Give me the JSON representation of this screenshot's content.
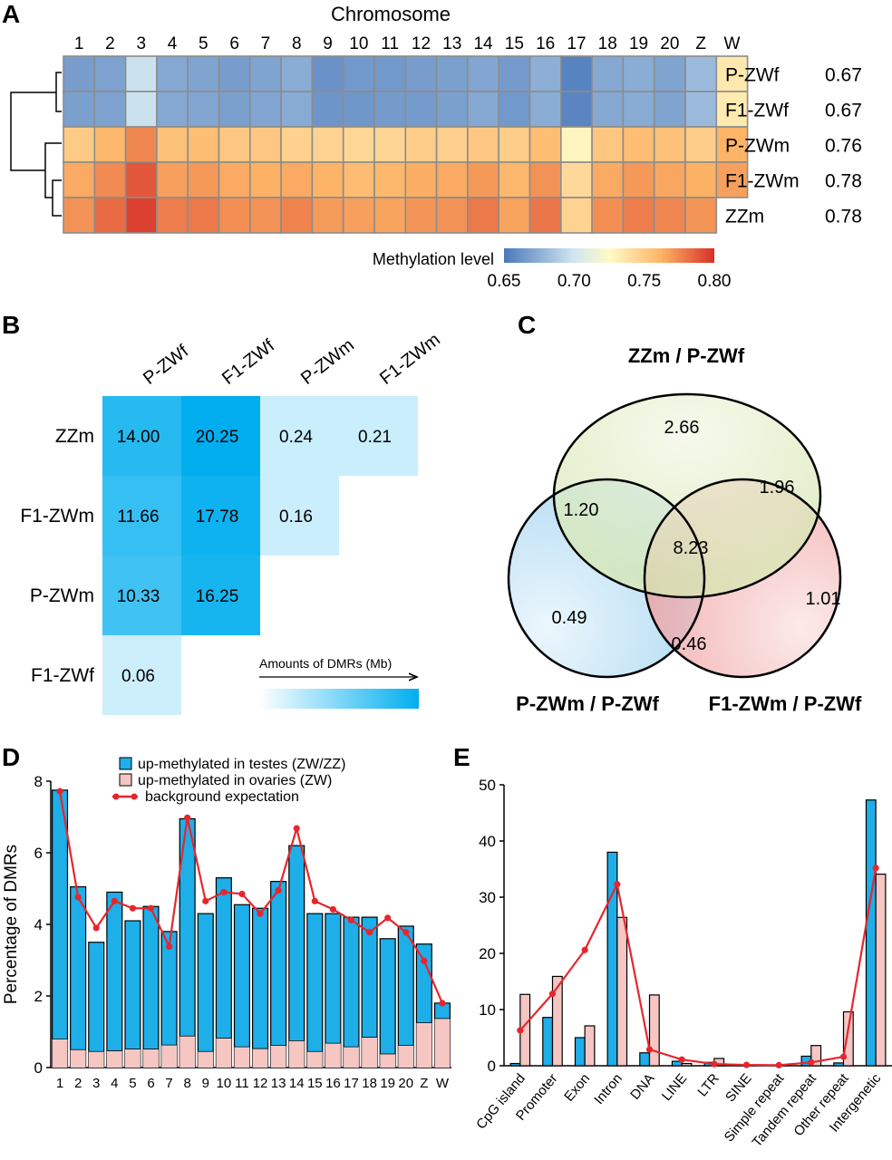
{
  "panels": {
    "A": "A",
    "B": "B",
    "C": "C",
    "D": "D",
    "E": "E"
  },
  "chart_data": [
    {
      "panel": "A",
      "type": "heatmap",
      "title": "Chromosome",
      "x": [
        "1",
        "2",
        "3",
        "4",
        "5",
        "6",
        "7",
        "8",
        "9",
        "10",
        "11",
        "12",
        "13",
        "14",
        "15",
        "16",
        "17",
        "18",
        "19",
        "20",
        "Z",
        "W"
      ],
      "rows": [
        {
          "name": "P-ZWf",
          "value": "0.67"
        },
        {
          "name": "F1-ZWf",
          "value": "0.67"
        },
        {
          "name": "P-ZWm",
          "value": "0.76"
        },
        {
          "name": "F1-ZWm",
          "value": "0.78"
        },
        {
          "name": "ZZm",
          "value": "0.78"
        }
      ],
      "values": [
        [
          0.667,
          0.669,
          0.698,
          0.672,
          0.67,
          0.667,
          0.67,
          0.674,
          0.662,
          0.665,
          0.665,
          0.667,
          0.668,
          0.671,
          0.666,
          0.675,
          0.655,
          0.672,
          0.674,
          0.67,
          0.68,
          0.735
        ],
        [
          0.668,
          0.669,
          0.698,
          0.672,
          0.671,
          0.668,
          0.671,
          0.673,
          0.663,
          0.664,
          0.666,
          0.666,
          0.668,
          0.672,
          0.665,
          0.674,
          0.656,
          0.672,
          0.673,
          0.67,
          0.68,
          0.734
        ],
        [
          0.75,
          0.76,
          0.775,
          0.755,
          0.757,
          0.752,
          0.752,
          0.747,
          0.746,
          0.744,
          0.745,
          0.749,
          0.748,
          0.752,
          0.749,
          0.757,
          0.728,
          0.752,
          0.757,
          0.755,
          0.749,
          0.762
        ],
        [
          0.765,
          0.774,
          0.789,
          0.768,
          0.77,
          0.765,
          0.763,
          0.765,
          0.762,
          0.758,
          0.76,
          0.764,
          0.765,
          0.77,
          0.76,
          0.772,
          0.743,
          0.765,
          0.77,
          0.766,
          0.763,
          0.768
        ],
        [
          0.772,
          0.783,
          0.795,
          0.778,
          0.779,
          0.773,
          0.772,
          0.776,
          0.769,
          0.768,
          0.767,
          0.771,
          0.772,
          0.779,
          0.767,
          0.78,
          0.746,
          0.773,
          0.778,
          0.775,
          0.771,
          null
        ]
      ],
      "colorbar": {
        "label": "Methylation level",
        "ticks": [
          "0.65",
          "0.70",
          "0.75",
          "0.80"
        ],
        "range": [
          0.65,
          0.8
        ]
      },
      "colors": {
        "low": "#4a78bb",
        "mid": "#fffbc8",
        "high": "#d73027"
      }
    },
    {
      "panel": "B",
      "type": "table",
      "columns": [
        "P-ZWf",
        "F1-ZWf",
        "P-ZWm",
        "F1-ZWm"
      ],
      "rows": [
        "ZZm",
        "F1-ZWm",
        "P-ZWm",
        "F1-ZWf"
      ],
      "cells": [
        [
          "14.00",
          "20.25",
          "0.24",
          "0.21"
        ],
        [
          "11.66",
          "17.78",
          "0.16",
          null
        ],
        [
          "10.33",
          "16.25",
          null,
          null
        ],
        [
          "0.06",
          null,
          null,
          null
        ]
      ],
      "legend": "Amounts of DMRs (Mb)",
      "colors": {
        "low": "#ffffff",
        "high": "#00aeef"
      }
    },
    {
      "panel": "C",
      "type": "venn",
      "sets": [
        "ZZm / P-ZWf",
        "P-ZWm / P-ZWf",
        "F1-ZWm / P-ZWf"
      ],
      "regions": {
        "only_top": "2.66",
        "top_left": "1.20",
        "top_right": "1.96",
        "center": "8.23",
        "only_left": "0.49",
        "only_right": "1.01",
        "left_right": "0.46"
      },
      "colors": {
        "top": "#e3edc6",
        "left": "#b5dcf3",
        "right": "#f3a3a3"
      }
    },
    {
      "panel": "D",
      "type": "bar",
      "ylabel": "Percentage of DMRs",
      "ylim": [
        0,
        8
      ],
      "yticks": [
        "0",
        "2",
        "4",
        "6",
        "8"
      ],
      "categories": [
        "1",
        "2",
        "3",
        "4",
        "5",
        "6",
        "7",
        "8",
        "9",
        "10",
        "11",
        "12",
        "13",
        "14",
        "15",
        "16",
        "17",
        "18",
        "19",
        "20",
        "Z",
        "W"
      ],
      "series": [
        {
          "name": "up-methylated in testes (ZW/ZZ)",
          "color": "#1eaee8",
          "values": [
            7.75,
            5.05,
            3.5,
            4.9,
            4.1,
            4.5,
            3.8,
            6.95,
            4.3,
            5.3,
            4.55,
            4.45,
            5.2,
            6.2,
            4.3,
            4.3,
            4.2,
            4.2,
            3.6,
            3.95,
            3.45,
            1.8
          ]
        },
        {
          "name": "up-methylated in ovaries (ZW)",
          "color": "#f6c6c3",
          "values": [
            0.8,
            0.5,
            0.45,
            0.47,
            0.52,
            0.52,
            0.63,
            0.88,
            0.45,
            0.82,
            0.58,
            0.53,
            0.62,
            0.75,
            0.45,
            0.68,
            0.58,
            0.85,
            0.38,
            0.62,
            1.25,
            1.37
          ]
        },
        {
          "name": "background expectation",
          "color": "#e6262f",
          "values": [
            7.72,
            4.76,
            3.9,
            4.65,
            4.45,
            4.45,
            3.38,
            6.98,
            4.65,
            4.9,
            4.85,
            4.3,
            4.95,
            6.68,
            4.65,
            4.42,
            4.12,
            3.78,
            4.18,
            3.78,
            2.98,
            1.8
          ]
        }
      ]
    },
    {
      "panel": "E",
      "type": "bar",
      "ylim": [
        0,
        50
      ],
      "yticks": [
        "0",
        "10",
        "20",
        "30",
        "40",
        "50"
      ],
      "categories": [
        "CpG island",
        "Promoter",
        "Exon",
        "Intron",
        "DNA",
        "LINE",
        "LTR",
        "SINE",
        "Simple repeat",
        "Tandem repeat",
        "Other repeat",
        "Intergenetic"
      ],
      "series": [
        {
          "name": "up-methylated in testes (ZW/ZZ)",
          "color": "#1eaee8",
          "values": [
            0.4,
            8.6,
            5.0,
            38.0,
            2.3,
            0.8,
            0.6,
            0.1,
            0.1,
            1.7,
            0.5,
            47.3
          ]
        },
        {
          "name": "up-methylated in ovaries (ZW)",
          "color": "#f6c6c3",
          "values": [
            12.7,
            15.9,
            7.1,
            26.4,
            12.6,
            0.4,
            1.3,
            0.1,
            0.1,
            3.6,
            9.6,
            34.1
          ]
        },
        {
          "name": "background expectation",
          "color": "#e6262f",
          "values": [
            6.3,
            12.8,
            20.6,
            32.3,
            2.9,
            1.1,
            0.3,
            0.15,
            0.1,
            0.6,
            1.6,
            35.2
          ]
        }
      ]
    }
  ]
}
